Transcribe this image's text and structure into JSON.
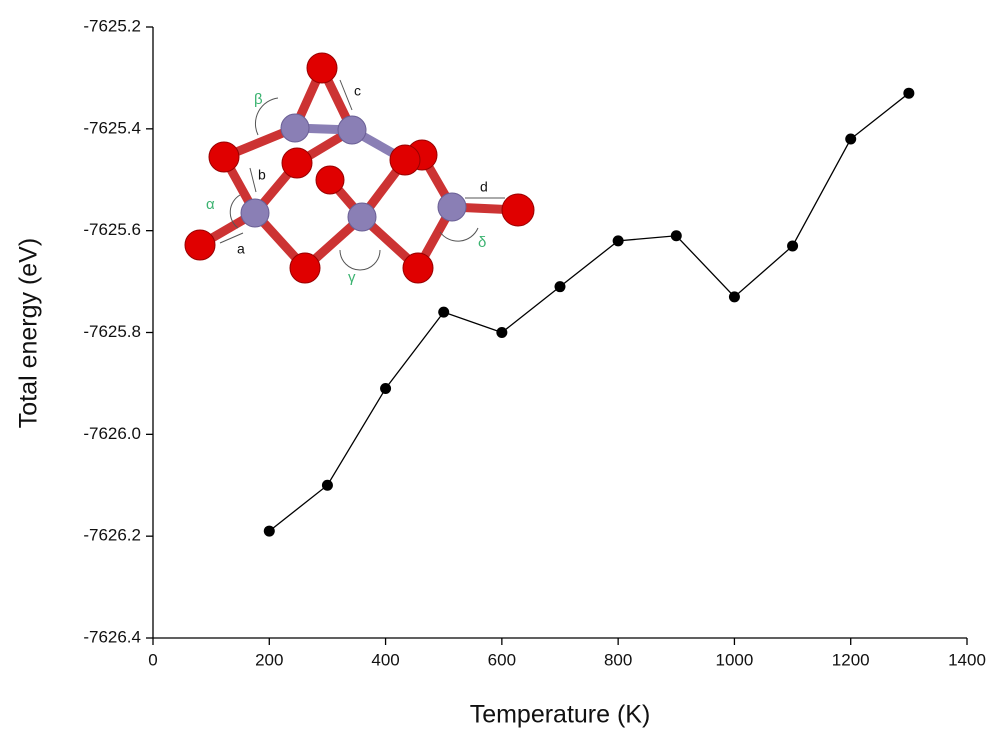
{
  "chart_data": {
    "type": "line",
    "x_label": "Temperature (K)",
    "y_label": "Total energy (eV)",
    "x": [
      200,
      300,
      400,
      500,
      600,
      700,
      800,
      900,
      1000,
      1100,
      1200,
      1300
    ],
    "series": [
      {
        "color": "#000000",
        "values": [
          -7626.19,
          -7626.1,
          -7625.91,
          -7625.76,
          -7625.8,
          -7625.71,
          -7625.62,
          -7625.61,
          -7625.73,
          -7625.63,
          -7625.42,
          -7625.33
        ]
      }
    ],
    "xlim": [
      0,
      1400
    ],
    "xticks": [
      0,
      200,
      400,
      600,
      800,
      1000,
      1200,
      1400
    ],
    "ylim": [
      -7626.4,
      -7625.2
    ],
    "yticks": [
      {
        "value": -7626.4,
        "label": "-7626.4"
      },
      {
        "value": -7626.2,
        "label": "-7626.2"
      },
      {
        "value": -7626,
        "label": "-7626.0"
      },
      {
        "value": -7625.8,
        "label": "-7625.8"
      },
      {
        "value": -7625.6,
        "label": "-7625.6"
      },
      {
        "value": -7625.4,
        "label": "-7625.4"
      },
      {
        "value": -7625.2,
        "label": "-7625.2"
      }
    ],
    "inset_labels": {
      "bonds": [
        "a",
        "b",
        "c",
        "d"
      ],
      "angles": [
        "α",
        "β",
        "γ",
        "δ"
      ]
    }
  }
}
